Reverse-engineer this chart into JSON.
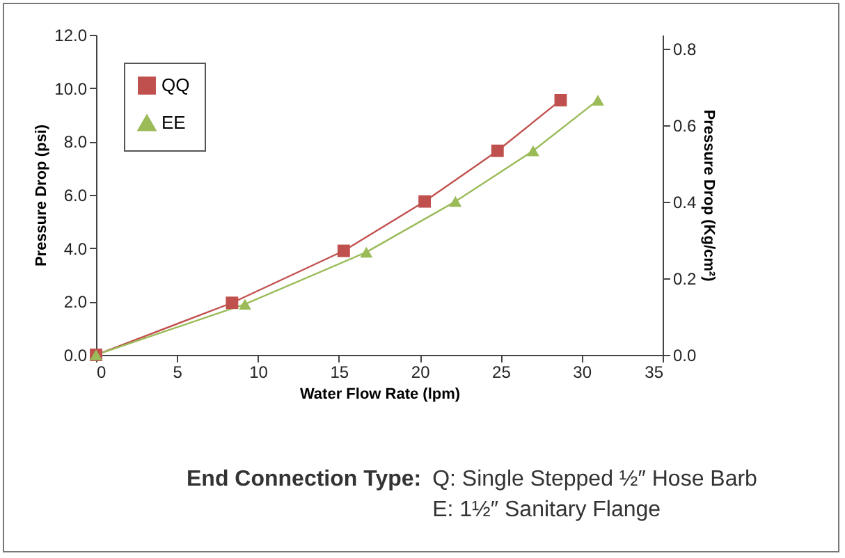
{
  "chart_data": {
    "type": "line",
    "xlabel": "Water Flow Rate (lpm)",
    "ylabel": "Pressure Drop (psi)",
    "y2label": "Pressure Drop (Kg/cm²)",
    "xlim": [
      0,
      35
    ],
    "xticks": [
      0,
      5,
      10,
      15,
      20,
      25,
      30,
      35
    ],
    "ylim": [
      0,
      12
    ],
    "yticks": [
      {
        "value": 0,
        "label": "0.0"
      },
      {
        "value": 2,
        "label": "2.0"
      },
      {
        "value": 4,
        "label": "4.0"
      },
      {
        "value": 6,
        "label": "6.0"
      },
      {
        "value": 8,
        "label": "8.0"
      },
      {
        "value": 10,
        "label": "10.0"
      },
      {
        "value": 12,
        "label": "12.0"
      }
    ],
    "y2lim": [
      0,
      0.836
    ],
    "y2ticks": [
      {
        "value": 0,
        "label": "0.0"
      },
      {
        "value": 0.2,
        "label": "0.2"
      },
      {
        "value": 0.4,
        "label": "0.4"
      },
      {
        "value": 0.6,
        "label": "0.6"
      },
      {
        "value": 0.8,
        "label": "0.8"
      }
    ],
    "legend": "top left",
    "grid": false,
    "series": [
      {
        "name": "QQ",
        "color": "#c0504d",
        "marker": "square",
        "x": [
          0,
          8.4,
          15.3,
          20.3,
          24.8,
          28.7
        ],
        "values": [
          0,
          1.95,
          3.9,
          5.75,
          7.65,
          9.55
        ]
      },
      {
        "name": "EE",
        "color": "#9bbb59",
        "marker": "triangle",
        "x": [
          0,
          9.2,
          16.7,
          22.2,
          27,
          31
        ],
        "values": [
          0,
          1.9,
          3.85,
          5.75,
          7.65,
          9.55
        ]
      }
    ],
    "annotations": [
      "End Connection Type:",
      "Q: Single Stepped ½″ Hose Barb",
      "E: 1½″ Sanitary Flange"
    ]
  }
}
